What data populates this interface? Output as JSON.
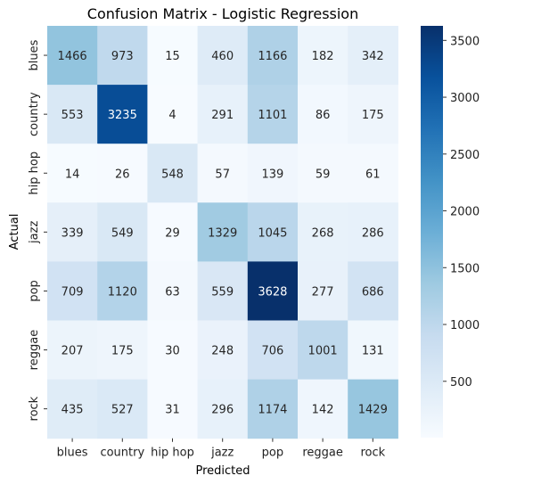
{
  "chart_data": {
    "type": "heatmap",
    "title": "Confusion Matrix - Logistic Regression",
    "xlabel": "Predicted",
    "ylabel": "Actual",
    "x_categories": [
      "blues",
      "country",
      "hip hop",
      "jazz",
      "pop",
      "reggae",
      "rock"
    ],
    "y_categories": [
      "blues",
      "country",
      "hip hop",
      "jazz",
      "pop",
      "reggae",
      "rock"
    ],
    "values": [
      [
        1466,
        973,
        15,
        460,
        1166,
        182,
        342
      ],
      [
        553,
        3235,
        4,
        291,
        1101,
        86,
        175
      ],
      [
        14,
        26,
        548,
        57,
        139,
        59,
        61
      ],
      [
        339,
        549,
        29,
        1329,
        1045,
        268,
        286
      ],
      [
        709,
        1120,
        63,
        559,
        3628,
        277,
        686
      ],
      [
        207,
        175,
        30,
        248,
        706,
        1001,
        131
      ],
      [
        435,
        527,
        31,
        296,
        1174,
        142,
        1429
      ]
    ],
    "colormap": "Blues",
    "vmin": 4,
    "vmax": 3628,
    "colorbar_ticks": [
      500,
      1000,
      1500,
      2000,
      2500,
      3000,
      3500
    ]
  }
}
